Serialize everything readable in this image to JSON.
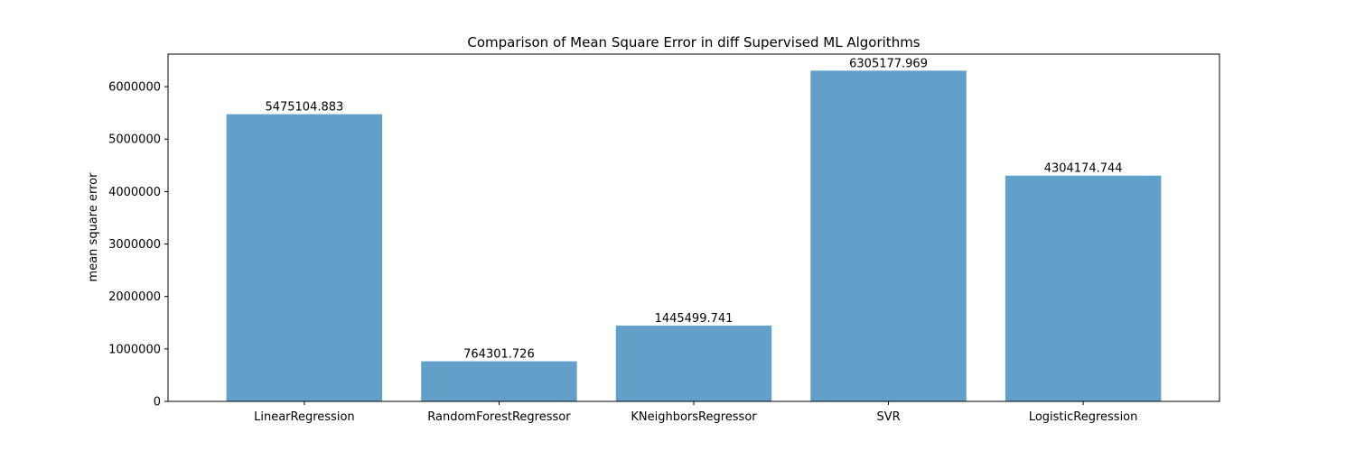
{
  "chart_data": {
    "type": "bar",
    "title": "Comparison of Mean Square Error in diff Supervised ML Algorithms",
    "xlabel": "",
    "ylabel": "mean square error",
    "categories": [
      "LinearRegression",
      "RandomForestRegressor",
      "KNeighborsRegressor",
      "SVR",
      "LogisticRegression"
    ],
    "values": [
      5475104.883,
      764301.726,
      1445499.741,
      6305177.969,
      4304174.744
    ],
    "value_labels": [
      "5475104.883",
      "764301.726",
      "1445499.741",
      "6305177.969",
      "4304174.744"
    ],
    "yticks": [
      0,
      1000000,
      2000000,
      3000000,
      4000000,
      5000000,
      6000000
    ],
    "ytick_labels": [
      "0",
      "1000000",
      "2000000",
      "3000000",
      "4000000",
      "5000000",
      "6000000"
    ],
    "ylim": [
      0,
      6620436.9
    ],
    "grid": false,
    "bar_color": "#1f77b4",
    "bar_opacity": 0.7
  }
}
